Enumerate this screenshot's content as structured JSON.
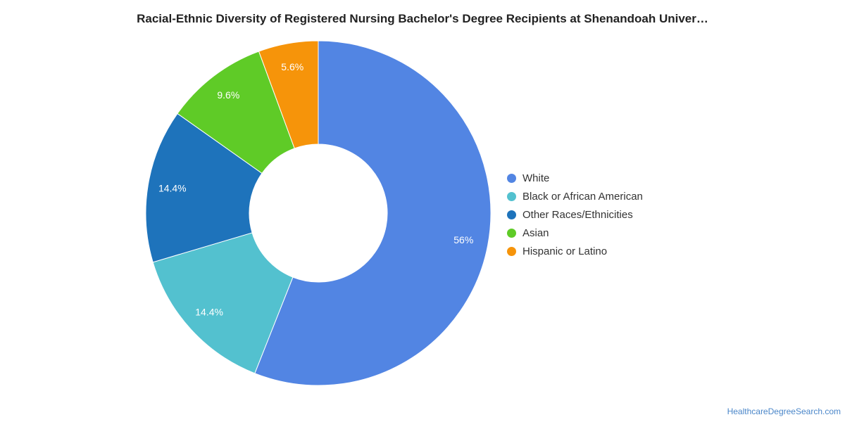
{
  "chart_data": {
    "type": "pie",
    "subtype": "donut",
    "title": "Racial-Ethnic Diversity of Registered Nursing Bachelor's Degree Recipients at Shenandoah Univer…",
    "slices": [
      {
        "label": "White",
        "value": 56,
        "display": "56%",
        "color": "#5285e3"
      },
      {
        "label": "Black or African American",
        "value": 14.4,
        "display": "14.4%",
        "color": "#53c1cf"
      },
      {
        "label": "Other Races/Ethnicities",
        "value": 14.4,
        "display": "14.4%",
        "color": "#1e73bb"
      },
      {
        "label": "Asian",
        "value": 9.6,
        "display": "9.6%",
        "color": "#5fcb27"
      },
      {
        "label": "Hispanic or Latino",
        "value": 5.6,
        "display": "5.6%",
        "color": "#f6940a"
      }
    ],
    "legend_position": "right"
  },
  "source": "HealthcareDegreeSearch.com"
}
